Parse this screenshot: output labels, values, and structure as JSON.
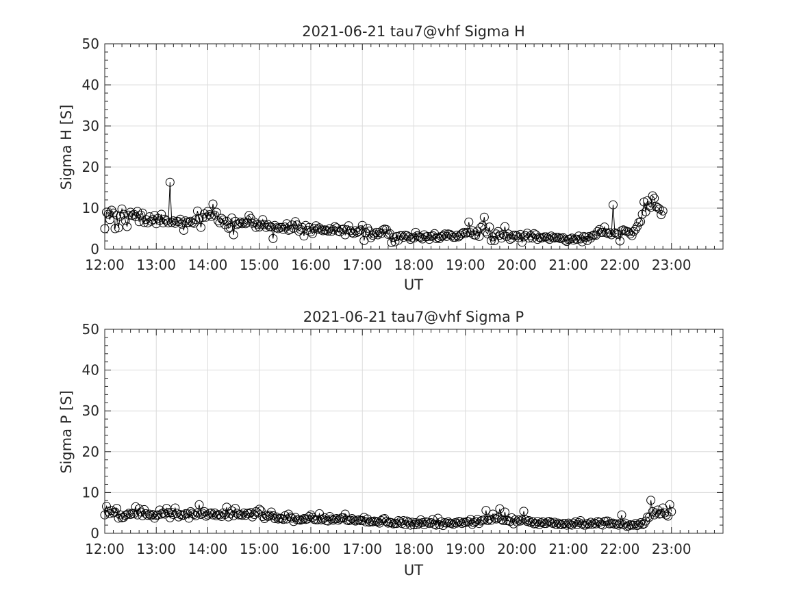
{
  "chart_data": [
    {
      "type": "line",
      "title": "2021-06-21  tau7@vhf Sigma H",
      "xlabel": "UT",
      "ylabel": "Sigma H [S]",
      "ylim": [
        0,
        50
      ],
      "yticks": [
        0,
        10,
        20,
        30,
        40,
        50
      ],
      "xlim": [
        "12:00",
        "24:00"
      ],
      "xtick_labels": [
        "12:00",
        "13:00",
        "14:00",
        "15:00",
        "16:00",
        "17:00",
        "18:00",
        "19:00",
        "20:00",
        "21:00",
        "22:00",
        "23:00"
      ],
      "grid": true,
      "marker": "open circle",
      "line_color": "#000000",
      "x_start": "12:00",
      "x_step_minutes": 2,
      "values": [
        5.0,
        9.0,
        8.5,
        7.2,
        9.5,
        8.8,
        5.0,
        8.3,
        5.2,
        8.0,
        9.8,
        8.5,
        7.0,
        5.5,
        8.3,
        9.0,
        8.2,
        8.5,
        7.9,
        9.2,
        6.7,
        8.3,
        8.8,
        6.5,
        7.2,
        6.4,
        7.9,
        6.8,
        7.2,
        8.2,
        6.2,
        7.5,
        7.0,
        8.5,
        6.4,
        7.3,
        6.9,
        6.4,
        16.3,
        6.5,
        6.9,
        6.3,
        6.8,
        6.7,
        7.3,
        6.1,
        4.6,
        6.9,
        6.5,
        6.5,
        6.8,
        6.5,
        6.3,
        7.2,
        9.3,
        7.5,
        5.3,
        7.7,
        8.6,
        7.8,
        9.2,
        8.4,
        8.0,
        11.0,
        8.3,
        9.0,
        6.9,
        6.4,
        7.5,
        7.1,
        6.0,
        6.8,
        5.1,
        5.3,
        7.6,
        3.5,
        6.8,
        6.0,
        6.2,
        6.6,
        6.2,
        6.6,
        6.2,
        6.5,
        8.2,
        7.5,
        6.3,
        6.6,
        5.3,
        6.0,
        5.4,
        6.0,
        7.2,
        6.0,
        5.3,
        6.0,
        5.5,
        5.4,
        2.6,
        5.8,
        5.2,
        5.0,
        5.3,
        5.3,
        4.8,
        5.4,
        6.2,
        4.6,
        4.8,
        5.9,
        5.1,
        6.7,
        5.9,
        4.4,
        4.8,
        5.3,
        3.2,
        5.8,
        4.6,
        5.3,
        4.2,
        3.8,
        5.1,
        5.7,
        4.9,
        5.2,
        4.7,
        4.5,
        4.7,
        4.6,
        4.4,
        5.0,
        4.3,
        4.7,
        5.5,
        5.2,
        4.4,
        4.2,
        4.8,
        4.9,
        3.5,
        4.7,
        5.7,
        4.5,
        4.0,
        3.8,
        4.5,
        4.1,
        4.4,
        4.7,
        5.8,
        2.1,
        4.0,
        5.1,
        4.4,
        2.8,
        3.4,
        3.7,
        4.1,
        3.5,
        4.1,
        3.8,
        4.7,
        4.9,
        4.8,
        3.6,
        3.8,
        1.6,
        2.9,
        1.8,
        3.1,
        2.2,
        3.3,
        3.3,
        2.9,
        3.4,
        3.3,
        3.0,
        2.4,
        2.8,
        2.7,
        4.1,
        3.3,
        3.0,
        2.9,
        2.5,
        3.5,
        3.0,
        3.1,
        2.4,
        3.1,
        3.3,
        3.8,
        2.6,
        2.9,
        2.6,
        3.1,
        3.3,
        3.7,
        3.1,
        3.7,
        3.6,
        3.3,
        2.9,
        2.9,
        3.4,
        3.0,
        3.4,
        3.8,
        4.1,
        3.8,
        4.1,
        6.6,
        4.0,
        4.5,
        3.5,
        3.4,
        4.4,
        3.1,
        5.3,
        5.7,
        7.8,
        4.2,
        3.7,
        5.4,
        2.1,
        3.0,
        2.1,
        3.7,
        4.3,
        3.4,
        2.7,
        3.6,
        5.5,
        3.1,
        3.7,
        2.4,
        2.7,
        3.4,
        3.4,
        3.3,
        2.8,
        3.6,
        1.7,
        3.0,
        3.3,
        3.9,
        2.7,
        3.3,
        2.7,
        3.8,
        3.5,
        2.4,
        2.9,
        2.7,
        2.8,
        3.0,
        3.0,
        2.7,
        2.4,
        3.2,
        2.8,
        2.7,
        2.9,
        2.9,
        2.6,
        2.7,
        2.8,
        2.2,
        1.9,
        2.4,
        2.5,
        2.7,
        2.2,
        2.5,
        2.4,
        3.2,
        2.5,
        1.8,
        3.1,
        2.9,
        2.1,
        3.1,
        2.7,
        3.3,
        3.5,
        3.4,
        4.3,
        4.8,
        4.1,
        4.1,
        5.4,
        4.0,
        3.8,
        4.0,
        3.5,
        10.8,
        4.0,
        3.8,
        3.6,
        2.0,
        4.5,
        4.7,
        4.5,
        4.3,
        4.2,
        3.7,
        3.3,
        4.3,
        4.8,
        5.5,
        6.5,
        6.7,
        8.5,
        11.5,
        9.1,
        11.8,
        10.5,
        10.2,
        13.0,
        12.4,
        10.4,
        10.1,
        9.8,
        8.4,
        9.3
      ]
    },
    {
      "type": "line",
      "title": "2021-06-21  tau7@vhf Sigma P",
      "xlabel": "UT",
      "ylabel": "Sigma P [S]",
      "ylim": [
        0,
        50
      ],
      "yticks": [
        0,
        10,
        20,
        30,
        40,
        50
      ],
      "xlim": [
        "12:00",
        "24:00"
      ],
      "xtick_labels": [
        "12:00",
        "13:00",
        "14:00",
        "15:00",
        "16:00",
        "17:00",
        "18:00",
        "19:00",
        "20:00",
        "21:00",
        "22:00",
        "23:00"
      ],
      "grid": true,
      "marker": "open circle",
      "line_color": "#000000",
      "x_start": "12:00",
      "x_step_minutes": 2,
      "values": [
        4.5,
        6.6,
        5.4,
        4.8,
        5.6,
        5.0,
        5.2,
        6.1,
        3.7,
        4.5,
        3.8,
        3.9,
        4.4,
        4.6,
        4.9,
        4.6,
        4.9,
        4.8,
        6.5,
        4.5,
        6.0,
        5.2,
        4.3,
        5.8,
        4.8,
        4.4,
        4.7,
        4.3,
        4.6,
        3.7,
        4.4,
        4.5,
        5.7,
        4.7,
        5.0,
        4.7,
        6.1,
        5.1,
        3.8,
        5.1,
        4.6,
        6.2,
        4.9,
        4.0,
        4.6,
        4.4,
        4.4,
        4.8,
        4.8,
        3.7,
        5.3,
        4.9,
        4.6,
        4.3,
        5.0,
        7.0,
        4.6,
        4.9,
        5.3,
        4.2,
        4.5,
        4.9,
        5.0,
        4.5,
        5.0,
        4.3,
        4.6,
        4.5,
        4.1,
        5.0,
        4.6,
        6.4,
        4.0,
        4.8,
        5.5,
        4.3,
        6.1,
        4.9,
        4.5,
        4.6,
        4.4,
        5.0,
        4.4,
        4.9,
        4.8,
        5.1,
        4.0,
        4.6,
        5.3,
        5.0,
        5.9,
        5.5,
        4.1,
        3.6,
        4.4,
        4.1,
        4.4,
        5.2,
        4.3,
        3.6,
        4.0,
        3.5,
        3.7,
        3.6,
        3.4,
        4.3,
        3.5,
        4.7,
        4.0,
        3.7,
        2.9,
        3.9,
        3.3,
        3.3,
        3.2,
        3.4,
        3.6,
        3.4,
        3.5,
        4.1,
        4.5,
        3.9,
        3.4,
        3.3,
        3.3,
        4.8,
        3.3,
        3.5,
        3.8,
        3.1,
        3.0,
        4.1,
        3.5,
        3.2,
        3.5,
        3.6,
        3.2,
        3.5,
        3.8,
        3.8,
        4.7,
        3.2,
        3.1,
        3.2,
        3.6,
        3.2,
        3.0,
        3.2,
        3.3,
        3.1,
        3.1,
        3.9,
        2.8,
        3.5,
        2.7,
        2.9,
        2.8,
        3.0,
        2.9,
        2.8,
        2.5,
        3.1,
        3.5,
        3.6,
        2.9,
        2.5,
        2.7,
        2.6,
        2.3,
        2.4,
        2.4,
        3.1,
        2.8,
        2.4,
        3.1,
        2.1,
        3.0,
        2.7,
        2.0,
        2.7,
        2.1,
        2.6,
        2.1,
        2.5,
        3.3,
        2.6,
        2.1,
        2.8,
        2.7,
        2.4,
        2.6,
        3.4,
        2.2,
        2.0,
        3.7,
        2.1,
        2.8,
        1.9,
        2.6,
        2.5,
        2.8,
        2.5,
        2.4,
        2.2,
        2.6,
        2.5,
        2.9,
        2.8,
        2.4,
        2.7,
        2.6,
        2.9,
        2.8,
        3.4,
        2.2,
        2.6,
        2.9,
        3.4,
        2.4,
        3.0,
        3.2,
        3.3,
        5.6,
        3.1,
        3.5,
        3.2,
        4.7,
        3.7,
        3.5,
        3.8,
        6.0,
        3.4,
        3.1,
        5.2,
        3.1,
        3.1,
        2.9,
        3.8,
        2.3,
        3.3,
        2.8,
        3.3,
        3.0,
        3.3,
        5.4,
        3.3,
        2.9,
        3.1,
        2.6,
        2.9,
        2.3,
        2.4,
        2.9,
        2.1,
        2.6,
        2.8,
        2.4,
        2.4,
        2.8,
        2.9,
        2.6,
        2.4,
        2.7,
        2.1,
        2.5,
        2.2,
        2.1,
        2.4,
        2.4,
        2.0,
        2.5,
        2.2,
        2.0,
        2.5,
        2.8,
        2.1,
        2.6,
        3.1,
        2.3,
        2.0,
        2.0,
        2.4,
        2.2,
        2.7,
        2.2,
        2.5,
        2.3,
        2.9,
        2.7,
        2.2,
        2.0,
        2.9,
        3.0,
        3.0,
        2.3,
        2.4,
        2.5,
        2.2,
        2.3,
        2.0,
        2.4,
        4.5,
        2.1,
        2.5,
        1.7,
        1.8,
        2.1,
        2.0,
        2.0,
        2.4,
        1.9,
        2.2,
        2.6,
        2.1,
        2.3,
        3.0,
        4.0,
        3.9,
        8.1,
        5.3,
        4.5,
        5.0,
        5.7,
        4.7,
        4.8,
        6.2,
        5.0,
        4.5,
        4.2,
        7.0,
        5.3
      ]
    }
  ]
}
